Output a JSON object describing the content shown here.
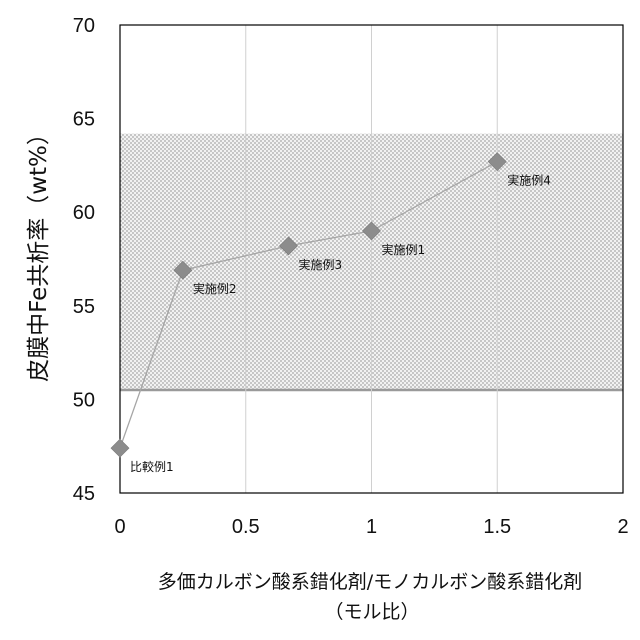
{
  "chart_data": {
    "type": "scatter",
    "xlabel_line1": "多価カルボン酸系錯化剤/モノカルボン酸系錯化剤",
    "xlabel_line2": "（モル比）",
    "ylabel": "皮膜中Fe共析率（wt%）",
    "xlim": [
      0,
      2
    ],
    "ylim": [
      45,
      70
    ],
    "x_ticks": [
      "0",
      "0.5",
      "1",
      "1.5",
      "2"
    ],
    "y_ticks": [
      "45",
      "50",
      "55",
      "60",
      "65",
      "70"
    ],
    "grid": "vertical",
    "shaded_band": {
      "y_from": 50.5,
      "y_to": 64.2
    },
    "series": [
      {
        "marker": "diamond",
        "connected": true,
        "points": [
          {
            "x": 0,
            "y": 47.4,
            "label": "比較例1"
          },
          {
            "x": 0.25,
            "y": 56.9,
            "label": "実施例2"
          },
          {
            "x": 0.67,
            "y": 58.2,
            "label": "実施例3"
          },
          {
            "x": 1.0,
            "y": 59.0,
            "label": "実施例1"
          },
          {
            "x": 1.5,
            "y": 62.7,
            "label": "実施例4"
          }
        ]
      }
    ],
    "colors": {
      "marker": "#8c8c8c",
      "line": "#a6a6a6",
      "band": "#d9d9d9"
    }
  }
}
